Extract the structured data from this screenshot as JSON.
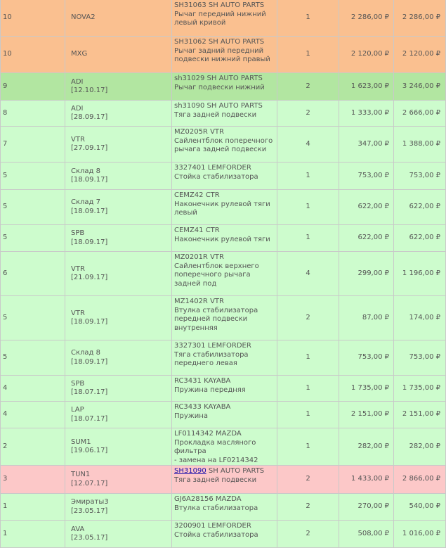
{
  "currency": "₽",
  "colors": {
    "orange": "#fac090",
    "green": "#cdfccd",
    "green_dark": "#b2e6a1",
    "pink": "#fcc8c8"
  },
  "rows": [
    {
      "days": "10",
      "supplier": "NOVA2",
      "date": "",
      "part_no": "SH31063",
      "brand": "SH AUTO PARTS",
      "desc": [
        "Рычаг передний нижний",
        "левый кривой"
      ],
      "qty": "1",
      "price": "2 286,00 ₽",
      "sum": "2 286,00 ₽"
    },
    {
      "days": "10",
      "supplier": "MXG",
      "date": "",
      "part_no": "SH31062",
      "brand": "SH AUTO PARTS",
      "desc": [
        "Рычаг задний передний",
        "подвески нижний правый"
      ],
      "qty": "1",
      "price": "2 120,00 ₽",
      "sum": "2 120,00 ₽"
    },
    {
      "days": "9",
      "supplier": "ADI",
      "date": "[12.10.17]",
      "part_no": "sh31029",
      "brand": "SH AUTO PARTS",
      "desc": [
        "Рычаг подвески нижний"
      ],
      "qty": "2",
      "price": "1 623,00 ₽",
      "sum": "3 246,00 ₽"
    },
    {
      "days": "8",
      "supplier": "ADI",
      "date": "[28.09.17]",
      "part_no": "sh31090",
      "brand": "SH AUTO PARTS",
      "desc": [
        "Тяга задней подвески"
      ],
      "qty": "2",
      "price": "1 333,00 ₽",
      "sum": "2 666,00 ₽"
    },
    {
      "days": "7",
      "supplier": "VTR",
      "date": "[27.09.17]",
      "part_no": "MZ0205R",
      "brand": "VTR",
      "desc": [
        "Сайлентблок поперечного",
        "рычага задней подвески"
      ],
      "qty": "4",
      "price": "347,00 ₽",
      "sum": "1 388,00 ₽"
    },
    {
      "days": "5",
      "supplier": "Склад 8",
      "date": "[18.09.17]",
      "part_no": "3327401",
      "brand": "LEMFORDER",
      "desc": [
        "Стойка стабилизатора"
      ],
      "qty": "1",
      "price": "753,00 ₽",
      "sum": "753,00 ₽"
    },
    {
      "days": "5",
      "supplier": "Склад 7",
      "date": "[18.09.17]",
      "part_no": "CEMZ42",
      "brand": "CTR",
      "desc": [
        "Наконечник рулевой тяги",
        "левый"
      ],
      "qty": "1",
      "price": "622,00 ₽",
      "sum": "622,00 ₽"
    },
    {
      "days": "5",
      "supplier": "SPB",
      "date": "[18.09.17]",
      "part_no": "CEMZ41",
      "brand": "CTR",
      "desc": [
        "Наконечник рулевой тяги"
      ],
      "qty": "1",
      "price": "622,00 ₽",
      "sum": "622,00 ₽"
    },
    {
      "days": "6",
      "supplier": "VTR",
      "date": "[21.09.17]",
      "part_no": "MZ0201R",
      "brand": "VTR",
      "desc": [
        "Сайлентблок верхнего",
        "поперечного рычага",
        "задней под"
      ],
      "qty": "4",
      "price": "299,00 ₽",
      "sum": "1 196,00 ₽"
    },
    {
      "days": "5",
      "supplier": "VTR",
      "date": "[18.09.17]",
      "part_no": "MZ1402R",
      "brand": "VTR",
      "desc": [
        "Втулка стабилизатора",
        "передней подвески",
        "внутренняя"
      ],
      "qty": "2",
      "price": "87,00 ₽",
      "sum": "174,00 ₽"
    },
    {
      "days": "5",
      "supplier": "Склад 8",
      "date": "[18.09.17]",
      "part_no": "3327301",
      "brand": "LEMFORDER",
      "desc": [
        "Тяга стабилизатора",
        "переднего левая"
      ],
      "qty": "1",
      "price": "753,00 ₽",
      "sum": "753,00 ₽"
    },
    {
      "days": "4",
      "supplier": "SPB",
      "date": "[18.07.17]",
      "part_no": "RC3431",
      "brand": "KAYABA",
      "desc": [
        "Пружина передняя"
      ],
      "qty": "1",
      "price": "1 735,00 ₽",
      "sum": "1 735,00 ₽"
    },
    {
      "days": "4",
      "supplier": "LAP",
      "date": "[18.07.17]",
      "part_no": "RC3433",
      "brand": "KAYABA",
      "desc": [
        "Пружина"
      ],
      "qty": "1",
      "price": "2 151,00 ₽",
      "sum": "2 151,00 ₽"
    },
    {
      "days": "2",
      "supplier": "SUM1",
      "date": "[19.06.17]",
      "part_no": "LF0114342",
      "brand": "MAZDA",
      "desc": [
        "Прокладка масляного",
        "фильтра",
        "- замена на LF0214342"
      ],
      "qty": "1",
      "price": "282,00 ₽",
      "sum": "282,00 ₽"
    },
    {
      "days": "3",
      "supplier": "TUN1",
      "date": "[12.07.17]",
      "part_no": "SH31090",
      "brand": "SH AUTO PARTS",
      "desc": [
        "Тяга задней подвески"
      ],
      "qty": "2",
      "price": "1 433,00 ₽",
      "sum": "2 866,00 ₽"
    },
    {
      "days": "1",
      "supplier": "Эмираты3",
      "date": "[23.05.17]",
      "part_no": "GJ6A28156",
      "brand": "MAZDA",
      "desc": [
        "Втулка стабилизатора"
      ],
      "qty": "2",
      "price": "270,00 ₽",
      "sum": "540,00 ₽"
    },
    {
      "days": "1",
      "supplier": "AVA",
      "date": "[23.05.17]",
      "part_no": "3200901",
      "brand": "LEMFORDER",
      "desc": [
        "Стойка стабилизатора"
      ],
      "qty": "2",
      "price": "508,00 ₽",
      "sum": "1 016,00 ₽"
    }
  ]
}
